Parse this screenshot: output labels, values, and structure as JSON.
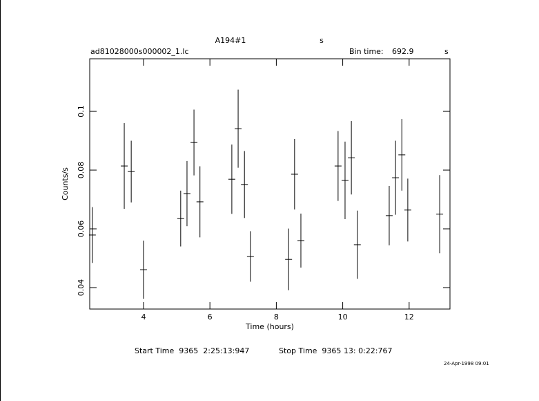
{
  "chart_data": {
    "type": "errorbar",
    "title": "A194#1",
    "title_unit": "s",
    "subtitle": "ad81028000s000002_1.lc",
    "bin_time_label": "Bin time:",
    "bin_time": 692.9,
    "bin_time_unit": "s",
    "xlabel": "Time (hours)",
    "ylabel": "Counts/s",
    "x": [
      2.46,
      3.42,
      3.63,
      4.0,
      5.12,
      5.31,
      5.52,
      5.7,
      6.66,
      6.85,
      7.04,
      7.22,
      8.37,
      8.55,
      8.74,
      9.86,
      10.07,
      10.26,
      10.44,
      11.4,
      11.59,
      11.78,
      11.96,
      12.92
    ],
    "values": [
      0.0579,
      0.0814,
      0.0795,
      0.0461,
      0.0635,
      0.072,
      0.0894,
      0.0692,
      0.0769,
      0.0941,
      0.0751,
      0.0506,
      0.0496,
      0.0786,
      0.056,
      0.0814,
      0.0765,
      0.0842,
      0.0546,
      0.0645,
      0.0774,
      0.0852,
      0.0664,
      0.065
    ],
    "yerr": [
      0.0095,
      0.0146,
      0.0105,
      0.0099,
      0.0095,
      0.0111,
      0.0112,
      0.0121,
      0.0118,
      0.0133,
      0.0114,
      0.0086,
      0.0105,
      0.012,
      0.0092,
      0.0119,
      0.0132,
      0.0125,
      0.0116,
      0.0101,
      0.0126,
      0.0122,
      0.0107,
      0.0133
    ],
    "color": "#000000",
    "xlim": [
      2.38,
      13.23
    ],
    "xticks": [
      4,
      6,
      8,
      10,
      12
    ],
    "ylim": [
      0.0327,
      0.1179
    ],
    "yticks": [
      0.04,
      0.06,
      0.08,
      0.1
    ]
  },
  "footer": {
    "start": "Start Time  9365  2:25:13:947",
    "stop": "Stop Time  9365 13: 0:22:767",
    "date": "24-Apr-1998 09:01"
  }
}
